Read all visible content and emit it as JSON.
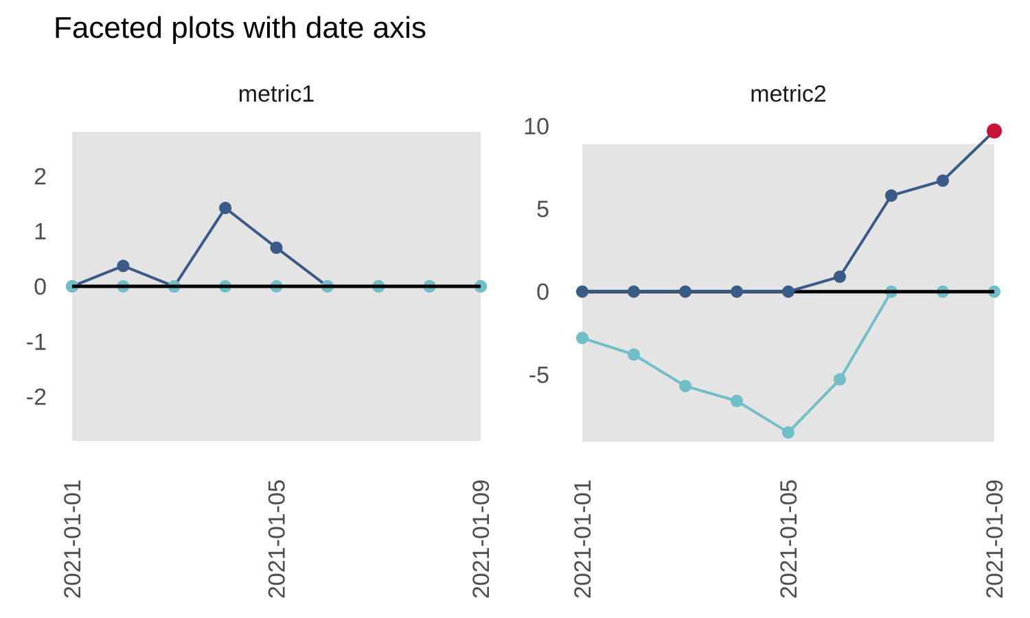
{
  "title": "Faceted plots with date axis",
  "colors": {
    "navy": "#3A5A88",
    "teal": "#72BEC8",
    "red": "#C8123A",
    "panel_bg": "#E4E4E4",
    "axis_text": "#4D4D4D",
    "facet_text": "#1A1A1A",
    "zero_line": "#000000",
    "background": "#FFFFFF"
  },
  "chart_data": [
    {
      "type": "line",
      "title": "metric1",
      "x": [
        "2021-01-01",
        "2021-01-02",
        "2021-01-03",
        "2021-01-04",
        "2021-01-05",
        "2021-01-06",
        "2021-01-07",
        "2021-01-08",
        "2021-01-09"
      ],
      "x_tick_indices": [
        0,
        4,
        8
      ],
      "x_tick_labels": [
        "2021-01-01",
        "2021-01-05",
        "2021-01-09"
      ],
      "ylim": [
        -2.8,
        2.8
      ],
      "yticks": [
        2,
        1,
        0,
        -1,
        -2
      ],
      "zero_line": true,
      "grid": false,
      "legend": "none",
      "series": [
        {
          "name": "navy-series",
          "color_key": "navy",
          "values": [
            0,
            0.37,
            0,
            1.42,
            0.7,
            0,
            0,
            0,
            0
          ]
        },
        {
          "name": "teal-series",
          "color_key": "teal",
          "values": [
            0,
            0,
            0,
            0,
            0,
            0,
            0,
            0,
            0
          ]
        }
      ],
      "draw_order": [
        "series:0",
        "series:1",
        "zero"
      ],
      "highlight_point": null
    },
    {
      "type": "line",
      "title": "metric2",
      "x": [
        "2021-01-01",
        "2021-01-02",
        "2021-01-03",
        "2021-01-04",
        "2021-01-05",
        "2021-01-06",
        "2021-01-07",
        "2021-01-08",
        "2021-01-09"
      ],
      "x_tick_indices": [
        0,
        4,
        8
      ],
      "x_tick_labels": [
        "2021-01-01",
        "2021-01-05",
        "2021-01-09"
      ],
      "ylim": [
        -9.05,
        8.9
      ],
      "yticks": [
        10,
        5,
        0,
        -5
      ],
      "zero_line": true,
      "grid": false,
      "legend": "none",
      "series": [
        {
          "name": "teal-series",
          "color_key": "teal",
          "values": [
            -2.8,
            -3.8,
            -5.7,
            -6.6,
            -8.5,
            -5.3,
            0,
            0,
            0
          ]
        },
        {
          "name": "navy-series",
          "color_key": "navy",
          "values": [
            0,
            0,
            0,
            0,
            0,
            0.9,
            5.8,
            6.7,
            9.7
          ]
        }
      ],
      "draw_order": [
        "series:0",
        "zero",
        "series:1"
      ],
      "highlight_point": {
        "series": 1,
        "index": 8,
        "color_key": "red"
      }
    }
  ]
}
